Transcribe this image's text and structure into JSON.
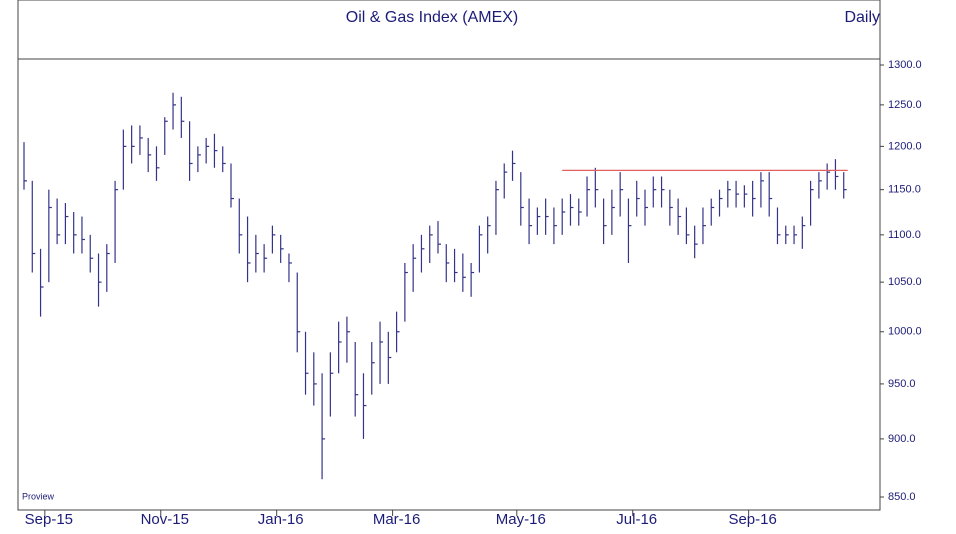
{
  "chart_data": {
    "type": "ohlc",
    "title": "Oil & Gas Index (AMEX)",
    "period": "Daily",
    "source": "Proview",
    "color": "#33338a",
    "log_scale": true,
    "ylim": [
      850,
      1300
    ],
    "yticks": [
      {
        "value": 850,
        "label": "850.0"
      },
      {
        "value": 900,
        "label": "900.0"
      },
      {
        "value": 950,
        "label": "950.0"
      },
      {
        "value": 1000,
        "label": "1000.0"
      },
      {
        "value": 1050,
        "label": "1050.0"
      },
      {
        "value": 1100,
        "label": "1100.0"
      },
      {
        "value": 1150,
        "label": "1150.0"
      },
      {
        "value": 1200,
        "label": "1200.0"
      },
      {
        "value": 1250,
        "label": "1250.0"
      },
      {
        "value": 1300,
        "label": "1300.0"
      }
    ],
    "categories": [
      null,
      null,
      null,
      "Sep-15",
      null,
      null,
      null,
      null,
      null,
      null,
      null,
      null,
      null,
      null,
      null,
      null,
      null,
      "Nov-15",
      null,
      null,
      null,
      null,
      null,
      null,
      null,
      null,
      null,
      null,
      null,
      null,
      null,
      "Jan-16",
      null,
      null,
      null,
      null,
      null,
      null,
      null,
      null,
      null,
      null,
      null,
      null,
      null,
      "Mar-16",
      null,
      null,
      null,
      null,
      null,
      null,
      null,
      null,
      null,
      null,
      null,
      null,
      null,
      null,
      "May-16",
      null,
      null,
      null,
      null,
      null,
      null,
      null,
      null,
      null,
      null,
      null,
      null,
      null,
      "Jul-16",
      null,
      null,
      null,
      null,
      null,
      null,
      null,
      null,
      null,
      null,
      null,
      null,
      null,
      "Sep-16",
      null,
      null,
      null,
      null,
      null,
      null,
      null,
      null,
      null,
      null,
      null
    ],
    "high": [
      1205,
      1160,
      1085,
      1150,
      1140,
      1135,
      1125,
      1120,
      1100,
      1080,
      1090,
      1160,
      1220,
      1225,
      1225,
      1210,
      1200,
      1235,
      1265,
      1260,
      1230,
      1200,
      1210,
      1215,
      1200,
      1180,
      1140,
      1120,
      1100,
      1090,
      1110,
      1100,
      1080,
      1060,
      1000,
      980,
      960,
      980,
      1010,
      1015,
      990,
      960,
      990,
      1010,
      1000,
      1020,
      1070,
      1090,
      1100,
      1110,
      1115,
      1090,
      1085,
      1080,
      1070,
      1110,
      1120,
      1160,
      1180,
      1195,
      1170,
      1140,
      1130,
      1140,
      1130,
      1140,
      1145,
      1140,
      1165,
      1175,
      1140,
      1150,
      1170,
      1140,
      1160,
      1150,
      1165,
      1165,
      1150,
      1140,
      1130,
      1110,
      1130,
      1140,
      1150,
      1160,
      1160,
      1155,
      1160,
      1170,
      1170,
      1130,
      1110,
      1110,
      1120,
      1160,
      1170,
      1180,
      1185,
      1170
    ],
    "low": [
      1150,
      1060,
      1015,
      1050,
      1090,
      1090,
      1080,
      1080,
      1060,
      1025,
      1040,
      1070,
      1150,
      1180,
      1190,
      1170,
      1160,
      1190,
      1220,
      1210,
      1160,
      1170,
      1180,
      1175,
      1170,
      1130,
      1080,
      1050,
      1060,
      1060,
      1080,
      1070,
      1050,
      980,
      940,
      930,
      865,
      920,
      960,
      970,
      920,
      900,
      940,
      950,
      950,
      980,
      1010,
      1040,
      1060,
      1070,
      1080,
      1050,
      1050,
      1040,
      1035,
      1060,
      1080,
      1100,
      1140,
      1160,
      1110,
      1090,
      1100,
      1100,
      1090,
      1100,
      1110,
      1110,
      1120,
      1130,
      1090,
      1100,
      1120,
      1070,
      1120,
      1110,
      1130,
      1130,
      1110,
      1100,
      1090,
      1075,
      1090,
      1110,
      1120,
      1130,
      1130,
      1130,
      1120,
      1130,
      1120,
      1090,
      1090,
      1090,
      1085,
      1110,
      1140,
      1150,
      1150,
      1140
    ],
    "close": [
      1160,
      1080,
      1045,
      1130,
      1100,
      1120,
      1100,
      1095,
      1075,
      1050,
      1080,
      1150,
      1200,
      1200,
      1210,
      1190,
      1175,
      1230,
      1250,
      1230,
      1180,
      1190,
      1200,
      1195,
      1180,
      1140,
      1100,
      1070,
      1080,
      1075,
      1100,
      1085,
      1070,
      1000,
      960,
      950,
      900,
      960,
      990,
      1000,
      940,
      930,
      970,
      990,
      975,
      1000,
      1060,
      1075,
      1085,
      1100,
      1090,
      1070,
      1060,
      1055,
      1060,
      1100,
      1110,
      1150,
      1170,
      1180,
      1130,
      1110,
      1120,
      1120,
      1110,
      1125,
      1130,
      1125,
      1150,
      1150,
      1110,
      1130,
      1150,
      1110,
      1140,
      1130,
      1150,
      1150,
      1130,
      1120,
      1100,
      1090,
      1110,
      1130,
      1140,
      1150,
      1145,
      1145,
      1140,
      1160,
      1140,
      1100,
      1100,
      1100,
      1110,
      1150,
      1160,
      1170,
      1165,
      1150
    ],
    "hline": {
      "value": 1172,
      "start": 65,
      "color": "#e06060"
    }
  }
}
